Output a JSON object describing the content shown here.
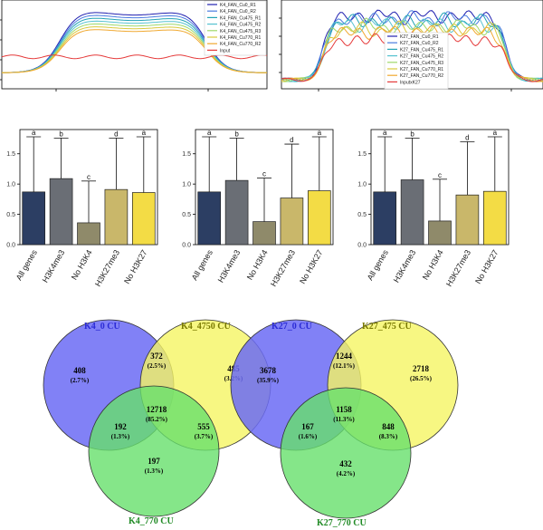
{
  "colors": {
    "bar_fills": [
      "#2c3e63",
      "#6a6e75",
      "#8f8a6a",
      "#c9b76a",
      "#f3dc45"
    ],
    "venn_k4": [
      "#6b6bf5",
      "#f5f563",
      "#66e06b"
    ],
    "venn_k27": [
      "#6b6bf5",
      "#f5f563",
      "#66e06b"
    ],
    "venn_title_left": "#2b2bd6",
    "venn_title_right": "#7a7a00",
    "venn_title_bottom": "#1f8a24"
  },
  "profile_left": {
    "legend": [
      "K4_FAN_Cu0_R1",
      "K4_FAN_Cu0_R2",
      "K4_FAN_Cu475_R1",
      "K4_FAN_Cu475_R2",
      "K4_FAN_Cu475_R3",
      "K4_FAN_Cu770_R1",
      "K4_FAN_Cu770_R2",
      "Input"
    ],
    "legend_colors": [
      "#2020b0",
      "#4a7be0",
      "#22a3b5",
      "#56c2d0",
      "#9ed86a",
      "#d9c93b",
      "#f0a830",
      "#e53a3a"
    ]
  },
  "profile_right": {
    "legend": [
      "K27_FAN_Cu0_R1",
      "K27_FAN_Cu0_R2",
      "K27_FAN_Cu475_R1",
      "K27_FAN_Cu475_R2",
      "K27_FAN_Cu475_R3",
      "K27_FAN_Cu770_R1",
      "K27_FAN_Cu770_R2",
      "InputxK27"
    ],
    "legend_colors": [
      "#2020b0",
      "#4a7be0",
      "#22a3b5",
      "#56c2d0",
      "#9ed86a",
      "#d9c93b",
      "#f0a830",
      "#e53a3a"
    ]
  },
  "chart_data": [
    {
      "type": "bar",
      "categories": [
        "All genes",
        "H3K4me3",
        "No H3K4",
        "H3K27me3",
        "No H3K27"
      ],
      "values": [
        0.87,
        1.09,
        0.36,
        0.91,
        0.86
      ],
      "error_high": [
        1.78,
        1.76,
        1.05,
        1.76,
        1.78
      ],
      "letters": [
        "a",
        "b",
        "c",
        "d",
        "a"
      ],
      "yticks": [
        "0.0",
        "0.5",
        "1.0",
        "1.5"
      ],
      "ylim": [
        0,
        1.9
      ]
    },
    {
      "type": "bar",
      "categories": [
        "All genes",
        "H3K4me3",
        "No H3K4",
        "H3K27me3",
        "No H3K27"
      ],
      "values": [
        0.87,
        1.06,
        0.38,
        0.77,
        0.89
      ],
      "error_high": [
        1.78,
        1.76,
        1.1,
        1.66,
        1.78
      ],
      "letters": [
        "a",
        "b",
        "c",
        "d",
        "a"
      ],
      "yticks": [
        "0.0",
        "0.5",
        "1.0",
        "1.5"
      ],
      "ylim": [
        0,
        1.9
      ]
    },
    {
      "type": "bar",
      "categories": [
        "All genes",
        "H3K4me3",
        "No H3K4",
        "H3K27me3",
        "No H3K27"
      ],
      "values": [
        0.87,
        1.07,
        0.39,
        0.82,
        0.88
      ],
      "error_high": [
        1.78,
        1.76,
        1.08,
        1.7,
        1.78
      ],
      "letters": [
        "a",
        "b",
        "c",
        "d",
        "a"
      ],
      "yticks": [
        "0.0",
        "0.5",
        "1.0",
        "1.5"
      ],
      "ylim": [
        0,
        1.9
      ]
    }
  ],
  "venn_left": {
    "label_a": "K4_0 CU",
    "label_b": "K4_4750 CU",
    "label_c": "K4_770 CU",
    "regions": [
      {
        "count": "408",
        "pct": "(2.7%)"
      },
      {
        "count": "372",
        "pct": "(2.5%)"
      },
      {
        "count": "485",
        "pct": "(3.2%)"
      },
      {
        "count": "12718",
        "pct": "(85.2%)"
      },
      {
        "count": "192",
        "pct": "(1.3%)"
      },
      {
        "count": "555",
        "pct": "(3.7%)"
      },
      {
        "count": "197",
        "pct": "(1.3%)"
      }
    ]
  },
  "venn_right": {
    "label_a": "K27_0 CU",
    "label_b": "K27_475 CU",
    "label_c": "K27_770 CU",
    "regions": [
      {
        "count": "3678",
        "pct": "(35.9%)"
      },
      {
        "count": "1244",
        "pct": "(12.1%)"
      },
      {
        "count": "2718",
        "pct": "(26.5%)"
      },
      {
        "count": "1158",
        "pct": "(11.3%)"
      },
      {
        "count": "167",
        "pct": "(1.6%)"
      },
      {
        "count": "848",
        "pct": "(8.3%)"
      },
      {
        "count": "432",
        "pct": "(4.2%)"
      }
    ]
  }
}
